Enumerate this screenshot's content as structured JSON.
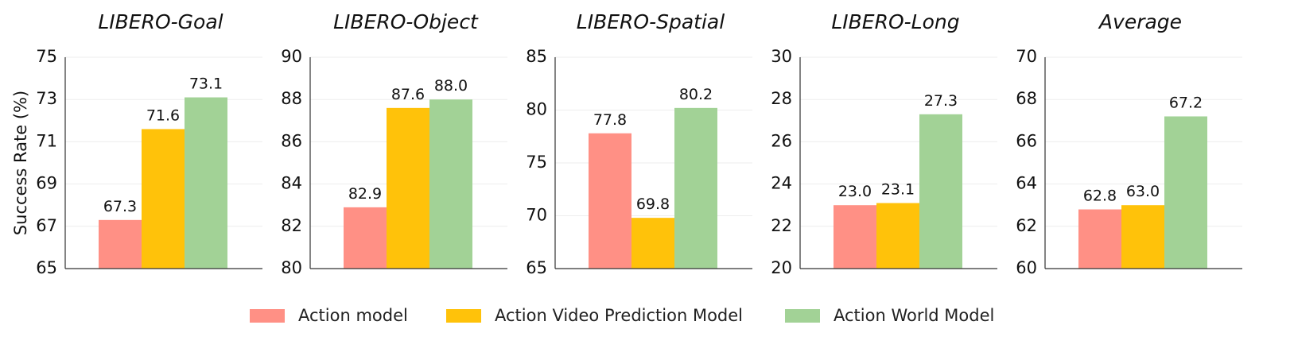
{
  "colors": {
    "action_model": "#FF9085",
    "action_video_prediction_model": "#FFC20A",
    "action_world_model": "#A2D296",
    "grid": "#EDEDED",
    "axis": "#333333"
  },
  "chart_data": {
    "type": "bar",
    "ylabel": "Success Rate (%)",
    "legend": {
      "placement": "bottom-center",
      "entries": [
        "Action model",
        "Action Video Prediction Model",
        "Action World Model"
      ]
    },
    "panels": [
      {
        "title": "LIBERO-Goal",
        "ylim": [
          65,
          75
        ],
        "yticks": [
          65,
          67,
          69,
          71,
          73,
          75
        ],
        "values": [
          67.3,
          71.6,
          73.1
        ],
        "labels": [
          "67.3",
          "71.6",
          "73.1"
        ]
      },
      {
        "title": "LIBERO-Object",
        "ylim": [
          80,
          90
        ],
        "yticks": [
          80,
          82,
          84,
          86,
          88,
          90
        ],
        "values": [
          82.9,
          87.6,
          88.0
        ],
        "labels": [
          "82.9",
          "87.6",
          "88.0"
        ]
      },
      {
        "title": "LIBERO-Spatial",
        "ylim": [
          65,
          85
        ],
        "yticks": [
          65,
          70,
          75,
          80,
          85
        ],
        "values": [
          77.8,
          69.8,
          80.2
        ],
        "labels": [
          "77.8",
          "69.8",
          "80.2"
        ]
      },
      {
        "title": "LIBERO-Long",
        "ylim": [
          20,
          30
        ],
        "yticks": [
          20,
          22,
          24,
          26,
          28,
          30
        ],
        "values": [
          23.0,
          23.1,
          27.3
        ],
        "labels": [
          "23.0",
          "23.1",
          "27.3"
        ]
      },
      {
        "title": "Average",
        "ylim": [
          60,
          70
        ],
        "yticks": [
          60,
          62,
          64,
          66,
          68,
          70
        ],
        "values": [
          62.8,
          63.0,
          67.2
        ],
        "labels": [
          "62.8",
          "63.0",
          "67.2"
        ]
      }
    ],
    "grid": "horizontal"
  }
}
